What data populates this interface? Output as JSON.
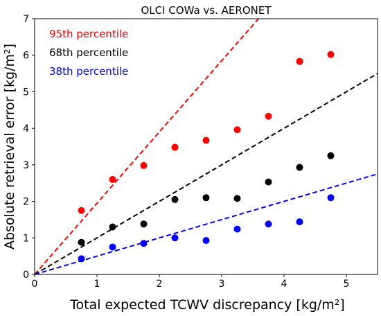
{
  "chart_data": {
    "type": "scatter",
    "title": "OLCI COWa vs. AERONET",
    "xlabel": "Total expected TCWV discrepancy [kg/m²]",
    "ylabel": "Absolute retrieval error [kg/m²]",
    "xlim": [
      0,
      5.5
    ],
    "ylim": [
      0,
      7
    ],
    "xticks": [
      "0",
      "1",
      "2",
      "3",
      "4",
      "5"
    ],
    "yticks": [
      "0",
      "1",
      "2",
      "3",
      "4",
      "5",
      "6",
      "7"
    ],
    "grid": false,
    "legend_placement": "top-left",
    "x": [
      0.75,
      1.25,
      1.75,
      2.25,
      2.75,
      3.25,
      3.75,
      4.25,
      4.75
    ],
    "series": [
      {
        "name": "95th percentile",
        "color": "#ff0000",
        "values": [
          1.75,
          2.6,
          2.98,
          3.48,
          3.67,
          3.96,
          4.33,
          5.83,
          6.02
        ],
        "fit_slope": 1.95
      },
      {
        "name": "68th percentile",
        "color": "#000000",
        "values": [
          0.88,
          1.3,
          1.38,
          2.05,
          2.1,
          2.08,
          2.53,
          2.93,
          3.25
        ],
        "fit_slope": 1.0
      },
      {
        "name": "38th percentile",
        "color": "#0000ff",
        "values": [
          0.43,
          0.75,
          0.85,
          1.0,
          0.93,
          1.24,
          1.38,
          1.44,
          2.1
        ],
        "fit_slope": 0.5
      }
    ]
  }
}
